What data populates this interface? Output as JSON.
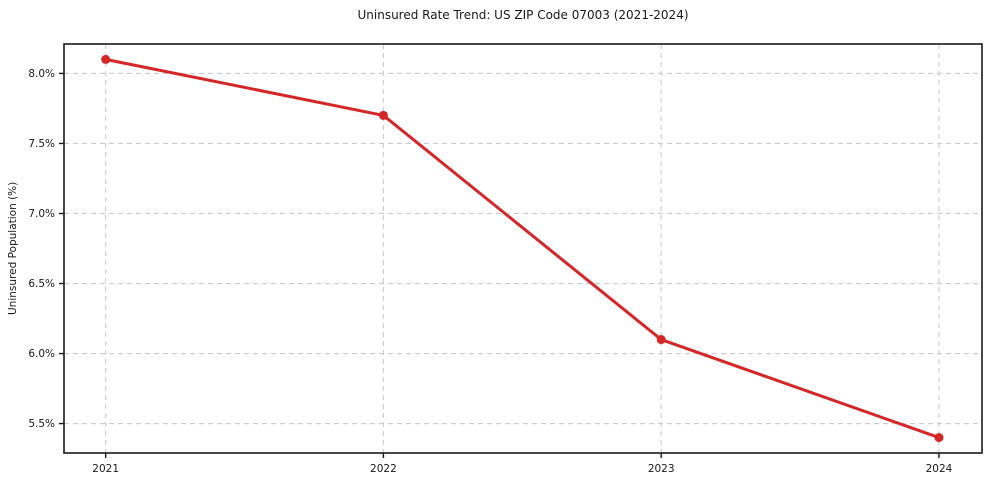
{
  "chart_data": {
    "type": "line",
    "title": "Uninsured Rate Trend: US ZIP Code 07003 (2021-2024)",
    "xlabel": "",
    "ylabel": "Uninsured Population (%)",
    "x": [
      2021,
      2022,
      2023,
      2024
    ],
    "series": [
      {
        "name": "Uninsured Population (%)",
        "values": [
          8.1,
          7.7,
          6.1,
          5.4
        ]
      }
    ],
    "xticks": [
      2021,
      2022,
      2023,
      2024
    ],
    "xtick_labels": [
      "2021",
      "2022",
      "2023",
      "2024"
    ],
    "yticks": [
      5.5,
      6.0,
      6.5,
      7.0,
      7.5,
      8.0
    ],
    "ytick_labels": [
      "5.5%",
      "6.0%",
      "6.5%",
      "7.0%",
      "7.5%",
      "8.0%"
    ],
    "xlim": [
      2020.85,
      2024.155
    ],
    "ylim": [
      5.29,
      8.21
    ],
    "grid": "dashed, both axes",
    "legend": "none",
    "colors": {
      "line": "#d62728",
      "marker": "#d62728",
      "grid": "#cccccc",
      "spine": "#1a1a1a",
      "background": "#ffffff",
      "text": "#1a1a1a"
    }
  }
}
